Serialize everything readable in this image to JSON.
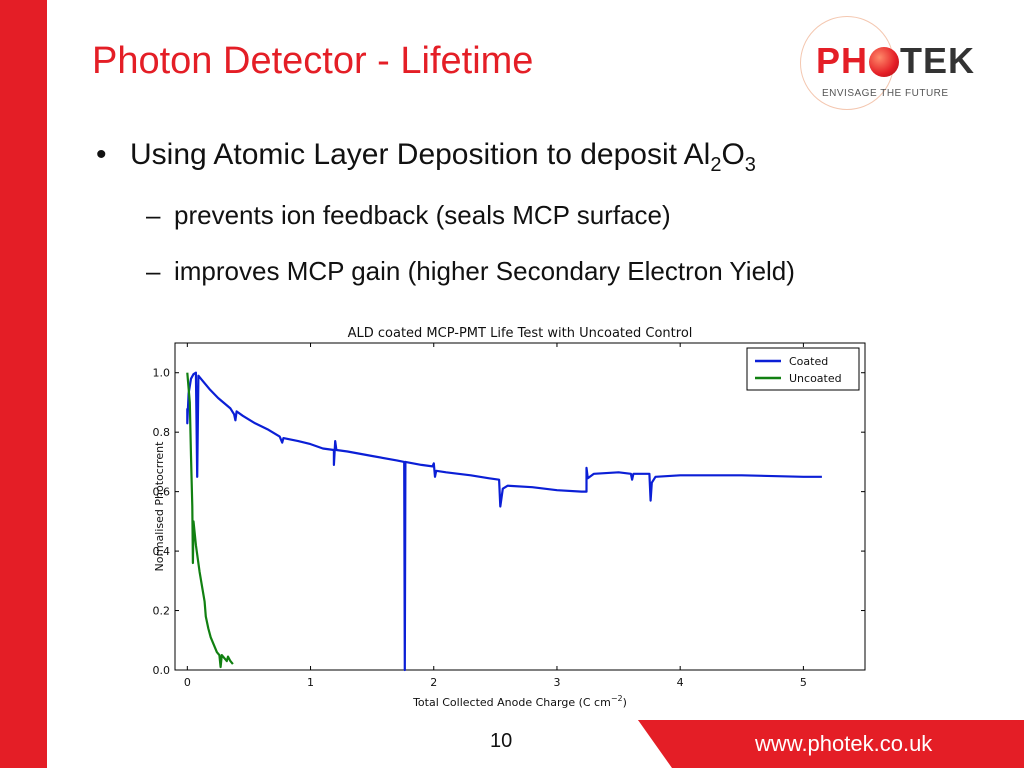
{
  "slide": {
    "title": "Photon Detector - Lifetime",
    "logo": {
      "brand_left": "PH",
      "brand_right": "TEK",
      "tagline": "ENVISAGE THE FUTURE"
    },
    "bullet_marker": "•",
    "dash_marker": "–",
    "bullet_main": {
      "text": "Using Atomic Layer Deposition to deposit Al",
      "sub1": "2",
      "mid": "O",
      "sub2": "3"
    },
    "subbullets": [
      "prevents ion feedback (seals MCP surface)",
      "improves MCP gain (higher Secondary Electron Yield)"
    ],
    "page_number": "10",
    "url": "www.photek.co.uk",
    "colors": {
      "accent": "#e41e26"
    }
  },
  "chart_data": {
    "type": "line",
    "title": "ALD coated MCP-PMT Life Test with Uncoated Control",
    "xlabel": "Total Collected Anode Charge (C cm",
    "xlabel_exp": "−2",
    "xlabel_end": ")",
    "ylabel": "Normalised Photocrrent",
    "xlim": [
      -0.1,
      5.5
    ],
    "ylim": [
      0.0,
      1.1
    ],
    "xticks": [
      0,
      1,
      2,
      3,
      4,
      5
    ],
    "yticks": [
      0.0,
      0.2,
      0.4,
      0.6,
      0.8,
      1.0
    ],
    "ytick_labels": [
      "0.0",
      "0.2",
      "0.4",
      "0.6",
      "0.8",
      "1.0"
    ],
    "legend_position": "top-right",
    "series": [
      {
        "name": "Coated",
        "color": "#0b1fd6",
        "points": [
          [
            0.0,
            0.88
          ],
          [
            0.0,
            0.83
          ],
          [
            0.01,
            0.93
          ],
          [
            0.03,
            0.98
          ],
          [
            0.05,
            0.995
          ],
          [
            0.07,
            1.0
          ],
          [
            0.08,
            0.65
          ],
          [
            0.09,
            0.99
          ],
          [
            0.12,
            0.975
          ],
          [
            0.18,
            0.945
          ],
          [
            0.25,
            0.915
          ],
          [
            0.35,
            0.88
          ],
          [
            0.38,
            0.86
          ],
          [
            0.39,
            0.84
          ],
          [
            0.4,
            0.87
          ],
          [
            0.45,
            0.855
          ],
          [
            0.55,
            0.83
          ],
          [
            0.65,
            0.81
          ],
          [
            0.75,
            0.785
          ],
          [
            0.77,
            0.765
          ],
          [
            0.78,
            0.78
          ],
          [
            0.9,
            0.77
          ],
          [
            1.0,
            0.76
          ],
          [
            1.1,
            0.745
          ],
          [
            1.19,
            0.74
          ],
          [
            1.19,
            0.69
          ],
          [
            1.2,
            0.77
          ],
          [
            1.21,
            0.74
          ],
          [
            1.3,
            0.735
          ],
          [
            1.5,
            0.72
          ],
          [
            1.7,
            0.705
          ],
          [
            1.76,
            0.7
          ],
          [
            1.765,
            0.0
          ],
          [
            1.77,
            0.7
          ],
          [
            1.9,
            0.69
          ],
          [
            1.99,
            0.685
          ],
          [
            2.0,
            0.695
          ],
          [
            2.01,
            0.65
          ],
          [
            2.02,
            0.67
          ],
          [
            2.1,
            0.665
          ],
          [
            2.3,
            0.655
          ],
          [
            2.45,
            0.645
          ],
          [
            2.53,
            0.64
          ],
          [
            2.54,
            0.55
          ],
          [
            2.56,
            0.61
          ],
          [
            2.6,
            0.62
          ],
          [
            2.8,
            0.615
          ],
          [
            3.0,
            0.605
          ],
          [
            3.2,
            0.6
          ],
          [
            3.24,
            0.6
          ],
          [
            3.24,
            0.68
          ],
          [
            3.25,
            0.645
          ],
          [
            3.3,
            0.66
          ],
          [
            3.5,
            0.665
          ],
          [
            3.6,
            0.66
          ],
          [
            3.61,
            0.64
          ],
          [
            3.62,
            0.66
          ],
          [
            3.75,
            0.66
          ],
          [
            3.76,
            0.57
          ],
          [
            3.77,
            0.63
          ],
          [
            3.8,
            0.65
          ],
          [
            4.0,
            0.655
          ],
          [
            4.5,
            0.655
          ],
          [
            5.0,
            0.65
          ],
          [
            5.15,
            0.65
          ]
        ]
      },
      {
        "name": "Uncoated",
        "color": "#118011",
        "points": [
          [
            0.0,
            1.0
          ],
          [
            0.02,
            0.9
          ],
          [
            0.03,
            0.72
          ],
          [
            0.04,
            0.55
          ],
          [
            0.045,
            0.36
          ],
          [
            0.05,
            0.5
          ],
          [
            0.07,
            0.42
          ],
          [
            0.1,
            0.33
          ],
          [
            0.12,
            0.28
          ],
          [
            0.14,
            0.23
          ],
          [
            0.15,
            0.18
          ],
          [
            0.17,
            0.14
          ],
          [
            0.19,
            0.11
          ],
          [
            0.22,
            0.08
          ],
          [
            0.24,
            0.06
          ],
          [
            0.26,
            0.05
          ],
          [
            0.27,
            0.01
          ],
          [
            0.28,
            0.05
          ],
          [
            0.3,
            0.04
          ],
          [
            0.32,
            0.03
          ],
          [
            0.33,
            0.045
          ],
          [
            0.35,
            0.03
          ],
          [
            0.37,
            0.02
          ]
        ]
      }
    ]
  }
}
